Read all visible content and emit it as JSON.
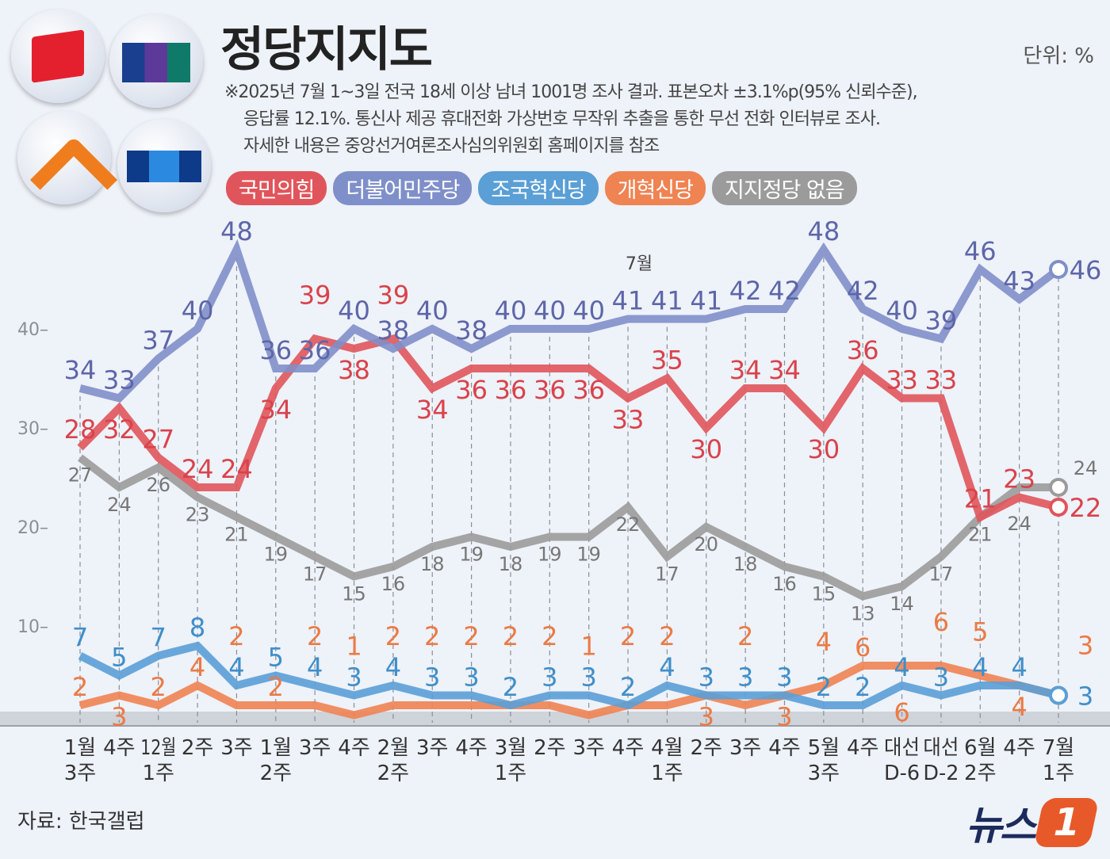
{
  "header": {
    "title": "정당지지도",
    "unit": "단위: %",
    "note_lines": [
      "※2025년 7월 1~3일 전국 18세 이상 남녀 1001명 조사 결과. 표본오차 ±3.1%p(95% 신뢰수준),",
      "응답률 12.1%. 통신사 제공 휴대전화 가상번호 무작위 추출을 통한 무선 전화 인터뷰로 조사.",
      "자세한 내용은 중앙선거여론조사심의위원회 홈페이지를 참조"
    ]
  },
  "source": "자료: 한국갤럽",
  "brand": {
    "text": "뉴스",
    "mark": "1"
  },
  "chart_data": {
    "type": "line",
    "categories": [
      "1월 3주",
      "4주",
      "12월 1주",
      "2주",
      "3주",
      "1월 2주",
      "3주",
      "4주",
      "2월 2주",
      "3주",
      "4주",
      "3월 1주",
      "2주",
      "3주",
      "4주",
      "4월 1주",
      "2주",
      "3주",
      "4주",
      "5월 3주",
      "4주",
      "대선 D-6",
      "대선 D-2",
      "6월 2주",
      "4주",
      "7월 1주"
    ],
    "ylim": [
      0,
      50
    ],
    "yticks": [
      10,
      20,
      30,
      40
    ],
    "grid": "vertical dashed lines",
    "legend": "top-left",
    "annotation": "7월",
    "series": [
      {
        "name": "국민의힘",
        "color": "#e0555b",
        "values": [
          28,
          32,
          27,
          24,
          24,
          34,
          39,
          38,
          39,
          34,
          36,
          36,
          36,
          36,
          33,
          35,
          30,
          34,
          34,
          30,
          36,
          33,
          33,
          21,
          23,
          22
        ]
      },
      {
        "name": "더불어민주당",
        "color": "#7f8fc9",
        "values": [
          34,
          33,
          37,
          40,
          48,
          36,
          36,
          40,
          38,
          40,
          38,
          40,
          40,
          40,
          41,
          41,
          41,
          42,
          42,
          48,
          42,
          40,
          39,
          46,
          43,
          46
        ]
      },
      {
        "name": "조국혁신당",
        "color": "#5a9fd6",
        "values": [
          7,
          5,
          7,
          8,
          4,
          5,
          4,
          3,
          4,
          3,
          3,
          2,
          3,
          3,
          2,
          4,
          3,
          3,
          3,
          2,
          2,
          4,
          3,
          4,
          4,
          3
        ]
      },
      {
        "name": "개혁신당",
        "color": "#ef8352",
        "values": [
          2,
          3,
          2,
          4,
          2,
          2,
          2,
          1,
          2,
          2,
          2,
          2,
          2,
          1,
          2,
          2,
          3,
          2,
          3,
          4,
          6,
          6,
          6,
          5,
          4,
          3
        ]
      },
      {
        "name": "지지정당 없음",
        "color": "#9b9b9b",
        "values": [
          27,
          24,
          26,
          23,
          21,
          19,
          17,
          15,
          16,
          18,
          19,
          18,
          19,
          19,
          22,
          17,
          20,
          18,
          16,
          15,
          13,
          14,
          17,
          21,
          24,
          24
        ]
      }
    ]
  }
}
